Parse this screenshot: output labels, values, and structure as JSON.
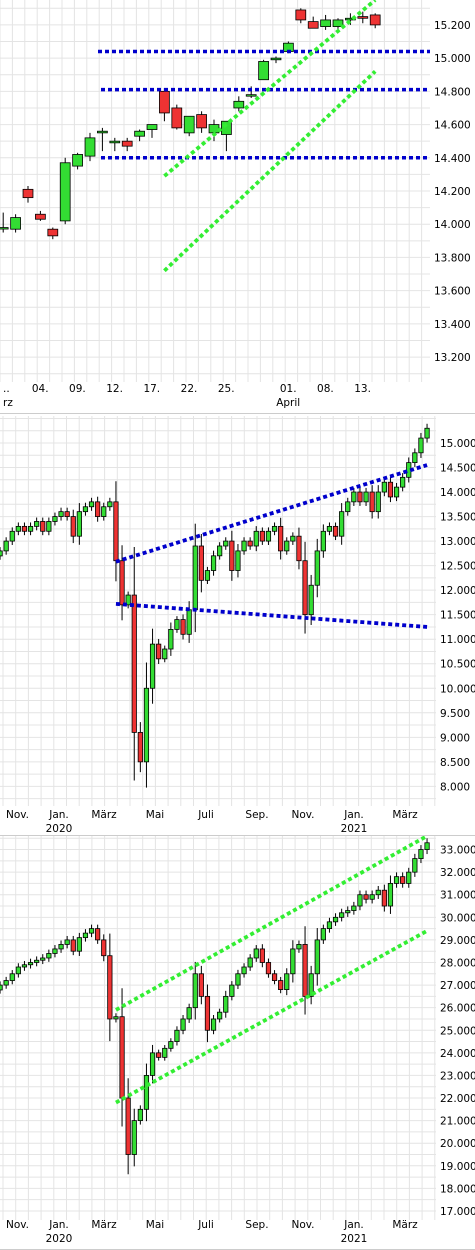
{
  "charts": [
    {
      "type": "candlestick",
      "ylim": [
        13.05,
        15.35
      ],
      "yticks": [
        13.2,
        13.4,
        13.6,
        13.8,
        14.0,
        14.2,
        14.4,
        14.6,
        14.8,
        15.0,
        15.2
      ],
      "ytick_labels": [
        "13.200",
        "13.400",
        "13.600",
        "13.800",
        "14.000",
        "14.200",
        "14.400",
        "14.600",
        "14.800",
        "15.000",
        "15.200"
      ],
      "xtick_labels": [
        {
          "label": "..",
          "sub": "rz",
          "date": "2021-03-01"
        },
        {
          "label": "04.",
          "sub": "",
          "date": "2021-03-04"
        },
        {
          "label": "09.",
          "sub": "",
          "date": "2021-03-09"
        },
        {
          "label": "12.",
          "sub": "",
          "date": "2021-03-12"
        },
        {
          "label": "17.",
          "sub": "",
          "date": "2021-03-17"
        },
        {
          "label": "22.",
          "sub": "",
          "date": "2021-03-22"
        },
        {
          "label": "25.",
          "sub": "",
          "date": "2021-03-25"
        },
        {
          "label": "01.",
          "sub": "April",
          "date": "2021-04-01"
        },
        {
          "label": "08.",
          "sub": "",
          "date": "2021-04-08"
        },
        {
          "label": "13.",
          "sub": "",
          "date": "2021-04-13"
        }
      ],
      "candles": [
        {
          "o": 13.98,
          "h": 14.07,
          "l": 13.95,
          "c": 13.98
        },
        {
          "o": 13.97,
          "h": 14.06,
          "l": 13.95,
          "c": 14.04
        },
        {
          "o": 14.21,
          "h": 14.23,
          "l": 14.13,
          "c": 14.16
        },
        {
          "o": 14.06,
          "h": 14.08,
          "l": 14.02,
          "c": 14.03
        },
        {
          "o": 13.97,
          "h": 13.98,
          "l": 13.91,
          "c": 13.93
        },
        {
          "o": 14.02,
          "h": 14.4,
          "l": 14.0,
          "c": 14.37
        },
        {
          "o": 14.35,
          "h": 14.43,
          "l": 14.33,
          "c": 14.42
        },
        {
          "o": 14.41,
          "h": 14.55,
          "l": 14.38,
          "c": 14.52
        },
        {
          "o": 14.55,
          "h": 14.58,
          "l": 14.44,
          "c": 14.56
        },
        {
          "o": 14.49,
          "h": 14.52,
          "l": 14.44,
          "c": 14.5
        },
        {
          "o": 14.5,
          "h": 14.52,
          "l": 14.44,
          "c": 14.47
        },
        {
          "o": 14.53,
          "h": 14.57,
          "l": 14.5,
          "c": 14.56
        },
        {
          "o": 14.57,
          "h": 14.6,
          "l": 14.52,
          "c": 14.6
        },
        {
          "o": 14.8,
          "h": 14.82,
          "l": 14.62,
          "c": 14.67
        },
        {
          "o": 14.7,
          "h": 14.72,
          "l": 14.57,
          "c": 14.58
        },
        {
          "o": 14.55,
          "h": 14.65,
          "l": 14.53,
          "c": 14.65
        },
        {
          "o": 14.66,
          "h": 14.68,
          "l": 14.55,
          "c": 14.58
        },
        {
          "o": 14.55,
          "h": 14.63,
          "l": 14.5,
          "c": 14.6
        },
        {
          "o": 14.54,
          "h": 14.62,
          "l": 14.44,
          "c": 14.62
        },
        {
          "o": 14.7,
          "h": 14.77,
          "l": 14.68,
          "c": 14.74
        },
        {
          "o": 14.78,
          "h": 14.83,
          "l": 14.76,
          "c": 14.78
        },
        {
          "o": 14.87,
          "h": 14.99,
          "l": 14.87,
          "c": 14.98
        },
        {
          "o": 14.99,
          "h": 15.01,
          "l": 14.97,
          "c": 15.0
        },
        {
          "o": 15.04,
          "h": 15.1,
          "l": 15.03,
          "c": 15.09
        },
        {
          "o": 15.29,
          "h": 15.3,
          "l": 15.21,
          "c": 15.23
        },
        {
          "o": 15.22,
          "h": 15.25,
          "l": 15.18,
          "c": 15.18
        },
        {
          "o": 15.19,
          "h": 15.26,
          "l": 15.17,
          "c": 15.23
        },
        {
          "o": 15.19,
          "h": 15.24,
          "l": 15.16,
          "c": 15.23
        },
        {
          "o": 15.23,
          "h": 15.27,
          "l": 15.2,
          "c": 15.24
        },
        {
          "o": 15.25,
          "h": 15.28,
          "l": 15.21,
          "c": 15.24
        },
        {
          "o": 15.26,
          "h": 15.27,
          "l": 15.18,
          "c": 15.2
        }
      ],
      "hlines": [
        15.04,
        14.81,
        14.4
      ],
      "channel": {
        "upper": [
          [
            13.0,
            14.29
          ],
          [
            30.0,
            15.35
          ]
        ],
        "lower": [
          [
            13.0,
            13.72
          ],
          [
            30.0,
            14.92
          ]
        ]
      }
    },
    {
      "type": "candlestick",
      "ylim": [
        7.6,
        15.55
      ],
      "yticks": [
        8,
        8.5,
        9,
        9.5,
        10,
        10.5,
        11,
        11.5,
        12,
        12.5,
        13,
        13.5,
        14,
        14.5,
        15
      ],
      "ytick_labels": [
        "8.000",
        "8.500",
        "9.000",
        "9.500",
        "10.000",
        "10.500",
        "11.000",
        "11.500",
        "12.000",
        "12.500",
        "13.000",
        "13.500",
        "14.000",
        "14.500",
        "15.000"
      ],
      "xtick_labels": [
        {
          "label": "Nov.",
          "sub": ""
        },
        {
          "label": "Jan.",
          "sub": "2020"
        },
        {
          "label": "März",
          "sub": ""
        },
        {
          "label": "Mai",
          "sub": ""
        },
        {
          "label": "Juli",
          "sub": ""
        },
        {
          "label": "Sep.",
          "sub": ""
        },
        {
          "label": "Nov.",
          "sub": ""
        },
        {
          "label": "Jan.",
          "sub": "2021"
        },
        {
          "label": "März",
          "sub": ""
        }
      ],
      "series": [
        12.8,
        13.0,
        13.2,
        13.3,
        13.2,
        13.3,
        13.4,
        13.2,
        13.4,
        13.5,
        13.6,
        13.5,
        13.1,
        13.6,
        13.7,
        13.8,
        13.5,
        13.7,
        13.8,
        12.6,
        11.7,
        11.9,
        9.1,
        8.5,
        10.0,
        10.9,
        10.6,
        10.8,
        11.2,
        11.4,
        11.1,
        11.6,
        12.9,
        12.2,
        12.4,
        12.7,
        12.9,
        13.0,
        12.4,
        12.8,
        13.0,
        12.9,
        13.2,
        13.0,
        13.2,
        13.3,
        12.8,
        13.0,
        13.1,
        12.6,
        11.5,
        12.1,
        12.8,
        13.2,
        13.3,
        13.1,
        13.6,
        13.8,
        14.0,
        13.8,
        14.0,
        13.6,
        14.0,
        14.2,
        13.9,
        14.1,
        14.3,
        14.6,
        14.8,
        15.1,
        15.3
      ],
      "hlines": [],
      "channel": {
        "upper": [
          [
            19,
            12.58
          ],
          [
            70,
            14.55
          ]
        ],
        "lower": [
          [
            19,
            11.72
          ],
          [
            70,
            11.25
          ]
        ]
      }
    },
    {
      "type": "candlestick",
      "ylim": [
        16.6,
        33.6
      ],
      "yticks": [
        17,
        18,
        19,
        20,
        21,
        22,
        23,
        24,
        25,
        26,
        27,
        28,
        29,
        30,
        31,
        32,
        33
      ],
      "ytick_labels": [
        "17.000",
        "18.000",
        "19.000",
        "20.000",
        "21.000",
        "22.000",
        "23.000",
        "24.000",
        "25.000",
        "26.000",
        "27.000",
        "28.000",
        "29.000",
        "30.000",
        "31.000",
        "32.000",
        "33.000"
      ],
      "xtick_labels": [
        {
          "label": "Nov.",
          "sub": ""
        },
        {
          "label": "Jan.",
          "sub": "2020"
        },
        {
          "label": "März",
          "sub": ""
        },
        {
          "label": "Mai",
          "sub": ""
        },
        {
          "label": "Juli",
          "sub": ""
        },
        {
          "label": "Sep.",
          "sub": ""
        },
        {
          "label": "Nov.",
          "sub": ""
        },
        {
          "label": "Jan.",
          "sub": "2021"
        },
        {
          "label": "März",
          "sub": ""
        }
      ],
      "series": [
        27.0,
        27.2,
        27.5,
        27.8,
        27.9,
        28.0,
        28.1,
        28.2,
        28.4,
        28.6,
        28.8,
        29.0,
        28.5,
        29.1,
        29.3,
        29.5,
        29.0,
        28.3,
        25.5,
        25.6,
        22.0,
        19.5,
        21.0,
        21.5,
        23.0,
        24.0,
        23.8,
        24.2,
        24.5,
        25.0,
        25.5,
        26.0,
        27.5,
        26.5,
        25.0,
        25.5,
        25.8,
        26.5,
        27.0,
        27.5,
        27.8,
        28.2,
        28.6,
        28.0,
        27.5,
        27.2,
        26.8,
        27.5,
        28.6,
        28.8,
        26.5,
        27.5,
        29.0,
        29.5,
        29.8,
        30.0,
        30.2,
        30.3,
        30.5,
        31.0,
        30.8,
        31.0,
        31.2,
        30.5,
        31.5,
        31.8,
        31.5,
        32.0,
        32.6,
        33.0,
        33.3
      ],
      "hlines": [],
      "channel": {
        "upper": [
          [
            19,
            25.9
          ],
          [
            70,
            33.6
          ]
        ],
        "lower": [
          [
            19,
            21.8
          ],
          [
            70,
            29.4
          ]
        ]
      }
    }
  ]
}
